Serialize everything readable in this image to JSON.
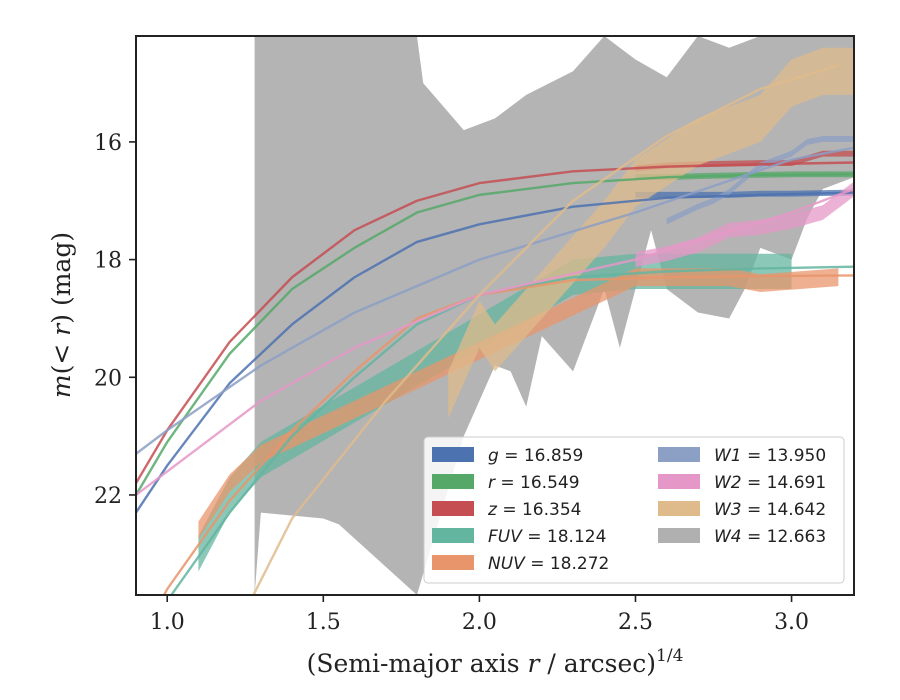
{
  "chart_data": {
    "type": "line",
    "xlabel": "(Semi-major axis r / arcsec)",
    "xlabel_base": "(Semi-major axis ",
    "xlabel_var": "r",
    "xlabel_tail": " / arcsec)",
    "xlabel_exp": "1/4",
    "ylabel": "m(< r) (mag)",
    "ylabel_pre": "m",
    "ylabel_mid": "(< ",
    "ylabel_var": "r",
    "ylabel_post": ") (mag)",
    "xlim": [
      0.9,
      3.2
    ],
    "ylim": [
      23.7,
      14.2
    ],
    "y_inverted": true,
    "xticks": [
      1.0,
      1.5,
      2.0,
      2.5,
      3.0
    ],
    "xtick_labels": [
      "1.0",
      "1.5",
      "2.0",
      "2.5",
      "3.0"
    ],
    "yticks": [
      16,
      18,
      20,
      22
    ],
    "ytick_labels": [
      "16",
      "18",
      "20",
      "22"
    ],
    "grid": false,
    "legend_position": "lower-right",
    "series": [
      {
        "name": "g",
        "label_value": "16.859",
        "color": "#4c72b0",
        "model": {
          "x": [
            0.9,
            1.0,
            1.2,
            1.4,
            1.6,
            1.8,
            2.0,
            2.3,
            2.6,
            2.9,
            3.2
          ],
          "y": [
            22.3,
            21.5,
            20.1,
            19.1,
            18.3,
            17.7,
            17.4,
            17.1,
            16.95,
            16.9,
            16.86
          ]
        },
        "data": {
          "x": [
            2.5,
            2.6,
            2.7,
            2.8,
            2.9,
            3.0,
            3.1,
            3.2
          ],
          "y": [
            16.9,
            16.9,
            16.9,
            16.9,
            16.88,
            16.88,
            16.87,
            16.86
          ],
          "width": 0.1
        }
      },
      {
        "name": "r",
        "label_value": "16.549",
        "color": "#55a868",
        "model": {
          "x": [
            0.9,
            1.0,
            1.2,
            1.4,
            1.6,
            1.8,
            2.0,
            2.3,
            2.6,
            2.9,
            3.2
          ],
          "y": [
            22.0,
            21.1,
            19.6,
            18.5,
            17.8,
            17.2,
            16.9,
            16.7,
            16.6,
            16.56,
            16.55
          ]
        },
        "data": {
          "x": [
            2.5,
            2.6,
            2.7,
            2.8,
            2.9,
            3.0,
            3.1,
            3.2
          ],
          "y": [
            16.6,
            16.6,
            16.58,
            16.57,
            16.56,
            16.55,
            16.55,
            16.55
          ],
          "width": 0.1
        }
      },
      {
        "name": "z",
        "label_value": "16.354",
        "color": "#c44e52",
        "model": {
          "x": [
            0.9,
            1.0,
            1.2,
            1.4,
            1.6,
            1.8,
            2.0,
            2.3,
            2.6,
            2.9,
            3.2
          ],
          "y": [
            21.8,
            20.9,
            19.4,
            18.3,
            17.5,
            17.0,
            16.7,
            16.5,
            16.42,
            16.38,
            16.35
          ]
        },
        "data": {
          "x": [
            2.5,
            2.6,
            2.7,
            2.8,
            2.9,
            3.0,
            3.1,
            3.2
          ],
          "y": [
            16.45,
            16.4,
            16.38,
            16.37,
            16.36,
            16.36,
            16.2,
            16.2
          ],
          "width": 0.1
        }
      },
      {
        "name": "FUV",
        "label_value": "18.124",
        "color": "#64b5a0",
        "model": {
          "x": [
            0.9,
            1.0,
            1.2,
            1.4,
            1.6,
            1.8,
            2.0,
            2.3,
            2.6,
            2.9,
            3.2
          ],
          "y": [
            24.8,
            23.8,
            22.3,
            21.0,
            20.0,
            19.1,
            18.6,
            18.3,
            18.2,
            18.15,
            18.12
          ]
        },
        "data": {
          "x": [
            1.1,
            1.15,
            1.2,
            1.3,
            2.3,
            2.5,
            2.7,
            2.9,
            3.0
          ],
          "y": [
            23.0,
            22.5,
            22.0,
            21.4,
            18.3,
            18.2,
            18.2,
            18.2,
            18.2
          ],
          "width": 0.6
        }
      },
      {
        "name": "NUV",
        "label_value": "18.272",
        "color": "#e8956b",
        "model": {
          "x": [
            0.9,
            1.0,
            1.2,
            1.4,
            1.6,
            1.8,
            2.0,
            2.3,
            2.6,
            2.9,
            3.2
          ],
          "y": [
            24.6,
            23.6,
            22.1,
            20.9,
            19.9,
            19.0,
            18.6,
            18.35,
            18.3,
            18.28,
            18.27
          ]
        },
        "data": {
          "x": [
            1.1,
            1.15,
            1.2,
            1.3,
            2.5,
            2.7,
            2.8,
            2.9,
            3.15
          ],
          "y": [
            22.6,
            22.2,
            21.8,
            21.3,
            18.3,
            18.3,
            18.3,
            18.4,
            18.3
          ],
          "width": 0.3
        }
      },
      {
        "name": "W1",
        "label_value": "13.950",
        "color": "#8c9fc4",
        "model": {
          "x": [
            0.9,
            1.0,
            1.3,
            1.6,
            2.0,
            2.5,
            3.0,
            3.2
          ],
          "y": [
            21.3,
            20.9,
            19.8,
            18.9,
            18.0,
            17.2,
            16.3,
            16.1
          ]
        },
        "data": {
          "x": [
            2.6,
            2.7,
            2.75,
            2.8,
            2.9,
            3.0,
            3.05,
            3.1,
            3.2
          ],
          "y": [
            17.35,
            17.1,
            17.0,
            16.85,
            16.4,
            16.2,
            16.0,
            15.95,
            15.95
          ],
          "width": 0.1
        }
      },
      {
        "name": "W2",
        "label_value": "14.691",
        "color": "#e598c8",
        "model": {
          "x": [
            0.9,
            1.0,
            1.3,
            1.6,
            2.0,
            2.5,
            3.0,
            3.2
          ],
          "y": [
            22.0,
            21.6,
            20.4,
            19.5,
            18.6,
            18.0,
            17.2,
            16.8
          ]
        },
        "data": {
          "x": [
            2.5,
            2.6,
            2.7,
            2.8,
            2.9,
            3.0,
            3.1,
            3.2
          ],
          "y": [
            18.0,
            17.9,
            17.75,
            17.5,
            17.45,
            17.35,
            17.2,
            16.8
          ],
          "width": 0.25
        }
      },
      {
        "name": "W3",
        "label_value": "14.642",
        "color": "#dfbb8c",
        "model": {
          "x": [
            1.2,
            1.4,
            1.7,
            2.0,
            2.3,
            2.6,
            2.9,
            3.15
          ],
          "y": [
            24.5,
            22.4,
            20.4,
            18.6,
            17.0,
            15.9,
            15.1,
            14.7
          ]
        },
        "data": {
          "x": [
            1.9,
            2.0,
            2.05,
            2.2,
            2.4,
            2.5,
            2.7,
            2.9,
            3.0,
            3.1,
            3.2
          ],
          "y": [
            20.3,
            19.1,
            19.5,
            18.6,
            17.4,
            16.7,
            16.0,
            15.6,
            15.0,
            14.8,
            14.8
          ],
          "width": 0.8
        }
      },
      {
        "name": "W4",
        "label_value": "12.663",
        "color": "#b0b0b0",
        "band_upper": {
          "x": [
            1.28,
            1.8,
            1.82,
            1.95,
            2.05,
            2.15,
            2.3,
            2.4,
            2.5,
            2.6,
            2.7,
            2.8,
            2.9,
            3.0,
            3.2
          ],
          "y": [
            14.2,
            14.2,
            15.0,
            15.8,
            15.6,
            15.2,
            14.8,
            14.2,
            14.6,
            14.9,
            14.2,
            14.4,
            14.2,
            14.2,
            14.2
          ]
        },
        "band_lower": {
          "x": [
            1.28,
            1.3,
            1.5,
            1.55,
            1.8,
            1.95,
            2.05,
            2.1,
            2.15,
            2.2,
            2.3,
            2.4,
            2.45,
            2.55,
            2.6,
            2.7,
            2.8,
            2.85,
            2.9,
            3.0,
            3.05,
            3.1,
            3.2
          ],
          "y": [
            23.7,
            22.3,
            22.4,
            22.5,
            23.7,
            21.0,
            19.8,
            19.9,
            20.5,
            19.3,
            19.9,
            18.5,
            19.5,
            17.5,
            18.5,
            18.9,
            19.0,
            18.5,
            17.8,
            18.0,
            17.3,
            16.8,
            16.6
          ]
        }
      }
    ]
  }
}
